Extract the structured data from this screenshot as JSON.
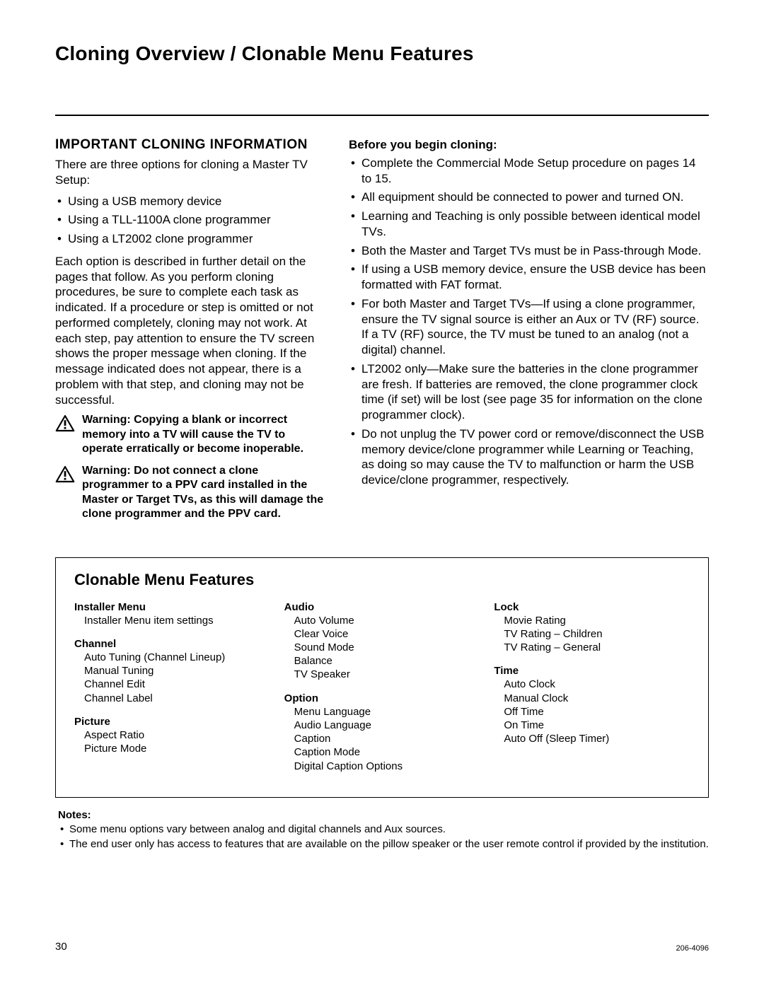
{
  "title": "Cloning Overview / Clonable Menu Features",
  "left": {
    "heading": "Important Cloning Information",
    "intro": "There are three options for cloning a Master TV Setup:",
    "options": [
      "Using a USB memory device",
      "Using a TLL-1100A clone programmer",
      "Using a LT2002 clone programmer"
    ],
    "detail": "Each option is described in further detail on the pages that follow. As you perform cloning procedures, be sure to complete each task as indicated. If a procedure or step is omitted or not performed completely, cloning may not work. At each step, pay attention to ensure the TV screen shows the proper message when cloning. If the message indicated does not appear, there is a problem with that step, and cloning may not be successful.",
    "warn1": "Warning: Copying a blank or incorrect memory into a TV will cause the TV to operate erratically or become inoperable.",
    "warn2": "Warning: Do not connect a clone programmer to a PPV card installed in the Master or Target TVs, as this will damage the clone programmer and the PPV card."
  },
  "right": {
    "before_heading": "Before you begin cloning:",
    "items": [
      "Complete the Commercial Mode Setup procedure on pages 14 to 15.",
      "All equipment should be connected to power and turned ON.",
      "Learning and Teaching is only possible between identical model TVs.",
      "Both the Master and Target TVs must be in Pass-through Mode.",
      "If using a USB memory device, ensure the USB device has been formatted with FAT format.",
      "For both Master and Target TVs—If using a clone programmer, ensure the TV signal source is either an Aux or TV (RF) source. If a TV (RF) source, the TV must be tuned to an analog (not a digital) channel.",
      "LT2002 only—Make sure the batteries in the clone programmer are fresh. If batteries are removed, the clone programmer clock time (if set) will be lost (see page 35 for information on the clone programmer clock).",
      "Do not unplug the TV power cord or remove/disconnect the USB memory device/clone programmer while Learning or Teaching, as doing so may cause the TV to malfunction or harm the USB device/clone programmer, respectively."
    ]
  },
  "features": {
    "title": "Clonable Menu Features",
    "columns": [
      [
        {
          "title": "Installer Menu",
          "items": [
            "Installer Menu item settings"
          ]
        },
        {
          "title": "Channel",
          "items": [
            "Auto Tuning (Channel Lineup)",
            "Manual Tuning",
            "Channel Edit",
            "Channel Label"
          ]
        },
        {
          "title": "Picture",
          "items": [
            "Aspect Ratio",
            "Picture Mode"
          ]
        }
      ],
      [
        {
          "title": "Audio",
          "items": [
            "Auto Volume",
            "Clear Voice",
            "Sound Mode",
            "Balance",
            "TV Speaker"
          ]
        },
        {
          "title": "Option",
          "items": [
            "Menu Language",
            "Audio Language",
            "Caption",
            "Caption Mode",
            "Digital Caption Options"
          ]
        }
      ],
      [
        {
          "title": "Lock",
          "items": [
            "Movie Rating",
            "TV Rating – Children",
            "TV Rating – General"
          ]
        },
        {
          "title": "Time",
          "items": [
            "Auto Clock",
            "Manual Clock",
            "Off Time",
            "On Time",
            "Auto Off (Sleep Timer)"
          ]
        }
      ]
    ]
  },
  "notes": {
    "heading": "Notes:",
    "items": [
      "Some menu options vary between analog and digital channels and Aux sources.",
      "The end user only has access to features that are available on the pillow speaker or the user remote control if provided by the institution."
    ]
  },
  "footer": {
    "page": "30",
    "doc": "206-4096"
  }
}
